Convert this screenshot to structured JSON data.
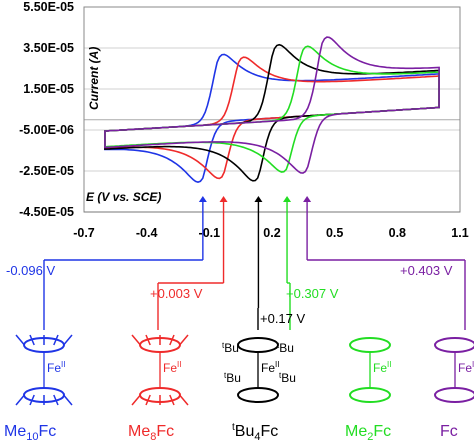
{
  "chart_data": {
    "type": "line",
    "xlabel": "E (V vs. SCE)",
    "ylabel": "Current (A)",
    "xlim": [
      -0.7,
      1.1
    ],
    "ylim": [
      -4.5e-05,
      5.5e-05
    ],
    "x_ticks": [
      "-0.7",
      "-0.4",
      "-0.1",
      "0.2",
      "0.5",
      "0.8",
      "1.1"
    ],
    "y_ticks": [
      "5.50E-05",
      "3.50E-05",
      "1.50E-05",
      "-5.00E-06",
      "-2.50E-05",
      "-4.50E-05"
    ],
    "grid": "horizontal",
    "series": [
      {
        "color": "#1f35e6",
        "E_half": -0.096,
        "E_start": -0.6,
        "E_end": 1.0,
        "ipa": 4.35e-05,
        "ipc": -3.8e-05,
        "label": "-0.096 V"
      },
      {
        "color": "#ef2b2b",
        "E_half": 0.003,
        "E_start": -0.6,
        "E_end": 1.0,
        "ipa": 4.1e-05,
        "ipc": -3.65e-05,
        "label": "+0.003 V"
      },
      {
        "color": "#000000",
        "E_half": 0.17,
        "E_start": -0.6,
        "E_end": 1.0,
        "ipa": 4.75e-05,
        "ipc": -3.95e-05,
        "label": "+0.17 V"
      },
      {
        "color": "#22dd22",
        "E_half": 0.307,
        "E_start": -0.6,
        "E_end": 1.0,
        "ipa": 4.55e-05,
        "ipc": -3.5e-05,
        "label": "+0.307 V"
      },
      {
        "color": "#7a1fa2",
        "E_half": 0.403,
        "E_start": -0.6,
        "E_end": 1.0,
        "ipa": 5.05e-05,
        "ipc": -3.65e-05,
        "label": "+0.403 V"
      }
    ]
  },
  "compounds": [
    {
      "base": "Me",
      "sub": "10",
      "rest": "Fc",
      "color": "#1f35e6"
    },
    {
      "base": "Me",
      "sub": "8",
      "rest": "Fc",
      "color": "#ef2b2b"
    },
    {
      "pre": "t",
      "base": "Bu",
      "sub": "4",
      "rest": "Fc",
      "color": "#000000"
    },
    {
      "base": "Me",
      "sub": "2",
      "rest": "Fc",
      "color": "#22dd22"
    },
    {
      "base": "Fc",
      "sub": "",
      "rest": "",
      "color": "#7a1fa2"
    }
  ],
  "structure": {
    "fe_label": "Fe",
    "fe_ox": "II",
    "tbu_label": "Bu",
    "tbu_pre": "t"
  }
}
